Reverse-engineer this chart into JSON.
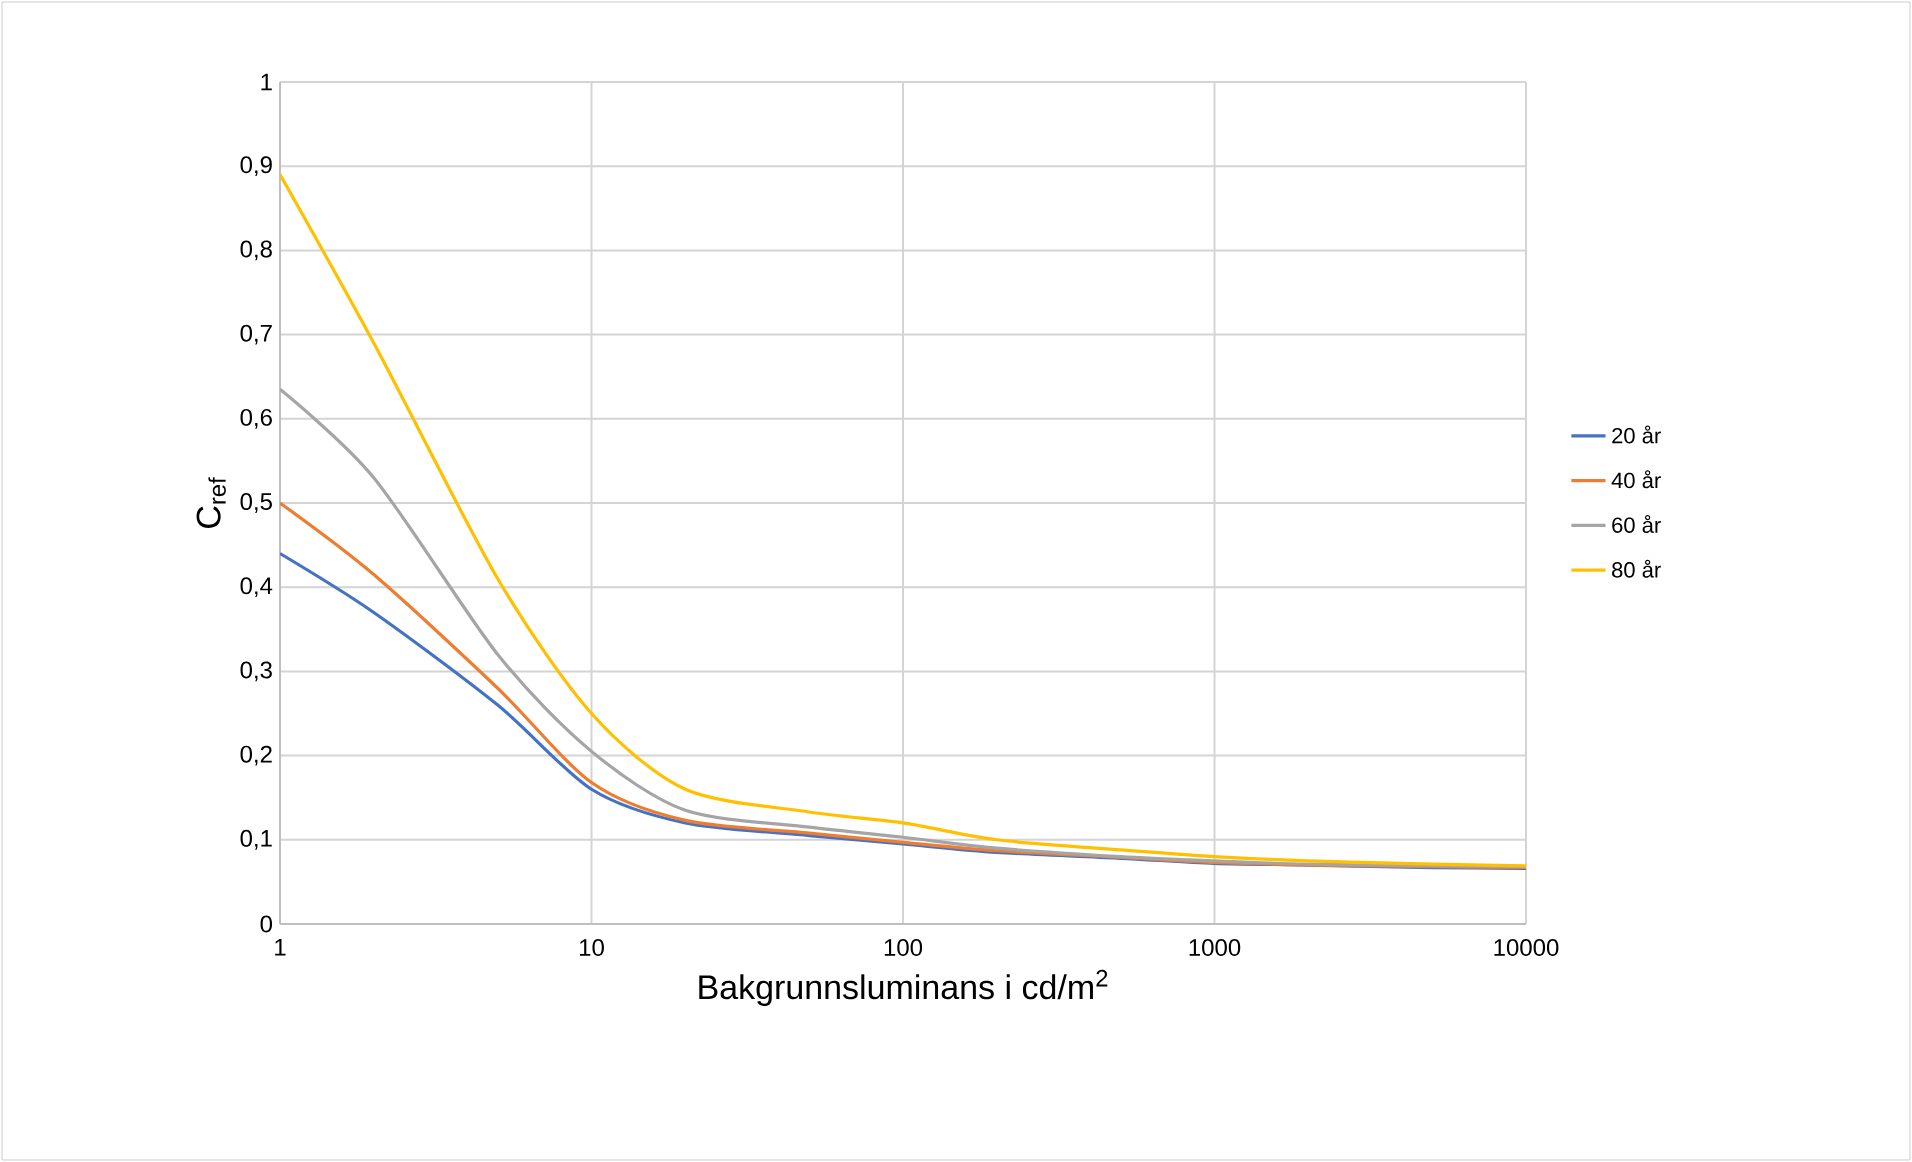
{
  "chart_data": {
    "type": "line",
    "xlabel": "Bakgrunnsluminans i cd/m$^{2}$",
    "ylabel": "C$_{ref}$",
    "x": [
      1,
      2,
      5,
      10,
      20,
      50,
      100,
      200,
      500,
      1000,
      2000,
      5000,
      10000
    ],
    "series": [
      {
        "name": "20 år",
        "color": "#4472c4",
        "values": [
          0.44,
          0.37,
          0.26,
          0.16,
          0.12,
          0.105,
          0.095,
          0.085,
          0.078,
          0.072,
          0.07,
          0.067,
          0.066
        ]
      },
      {
        "name": "40 år",
        "color": "#ed7d31",
        "values": [
          0.5,
          0.415,
          0.28,
          0.168,
          0.123,
          0.108,
          0.097,
          0.087,
          0.079,
          0.073,
          0.07,
          0.068,
          0.067
        ]
      },
      {
        "name": "60 år",
        "color": "#a5a5a5",
        "values": [
          0.635,
          0.53,
          0.32,
          0.205,
          0.135,
          0.115,
          0.103,
          0.09,
          0.08,
          0.075,
          0.071,
          0.069,
          0.068
        ]
      },
      {
        "name": "80 år",
        "color": "#ffc000",
        "values": [
          0.89,
          0.69,
          0.41,
          0.25,
          0.16,
          0.133,
          0.12,
          0.1,
          0.088,
          0.08,
          0.075,
          0.071,
          0.069
        ]
      }
    ],
    "log": "x",
    "xlim": [
      1,
      10000
    ],
    "ylim": [
      0,
      1
    ],
    "xticks": [
      1,
      10,
      100,
      1000,
      10000
    ],
    "yticks": [
      {
        "value": 0,
        "label": "0"
      },
      {
        "value": 0.1,
        "label": "0,1"
      },
      {
        "value": 0.2,
        "label": "0,2"
      },
      {
        "value": 0.3,
        "label": "0,3"
      },
      {
        "value": 0.4,
        "label": "0,4"
      },
      {
        "value": 0.5,
        "label": "0,5"
      },
      {
        "value": 0.6,
        "label": "0,6"
      },
      {
        "value": 0.7,
        "label": "0,7"
      },
      {
        "value": 0.8,
        "label": "0,8"
      },
      {
        "value": 0.9,
        "label": "0,9"
      },
      {
        "value": 1,
        "label": "1"
      }
    ],
    "grid": true,
    "legend": "right",
    "marker": "none",
    "line_style": "solid"
  }
}
